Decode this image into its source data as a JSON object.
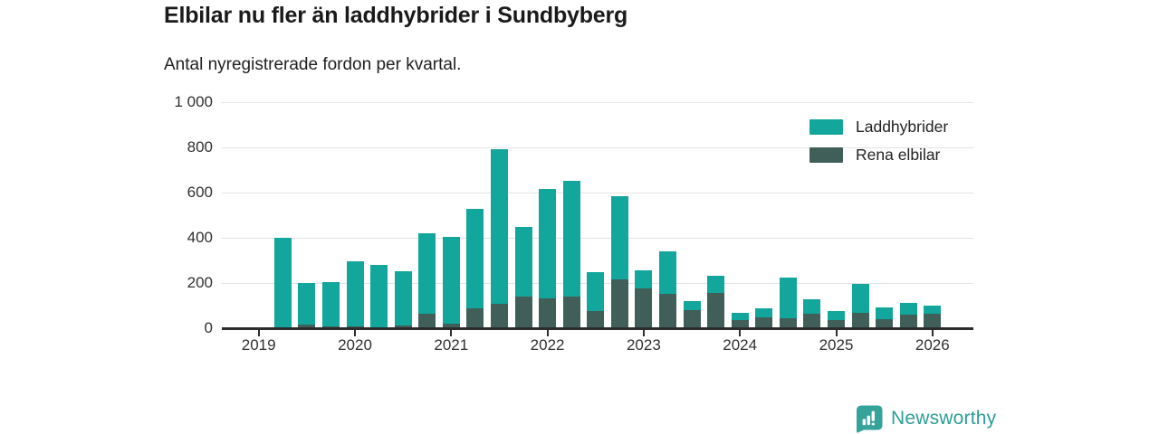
{
  "header": {
    "title": "Elbilar nu fler än laddhybrider i Sundbyberg",
    "subtitle": "Antal nyregistrerade fordon per kvartal."
  },
  "chart_data": {
    "type": "bar",
    "stacked": true,
    "title": "Elbilar nu fler än laddhybrider i Sundbyberg",
    "subtitle": "Antal nyregistrerade fordon per kvartal.",
    "x": [
      "2019 Q2",
      "2019 Q3",
      "2019 Q4",
      "2020 Q1",
      "2020 Q2",
      "2020 Q3",
      "2020 Q4",
      "2021 Q1",
      "2021 Q2",
      "2021 Q3",
      "2021 Q4",
      "2022 Q1",
      "2022 Q2",
      "2022 Q3",
      "2022 Q4",
      "2023 Q1",
      "2023 Q2",
      "2023 Q3",
      "2023 Q4",
      "2024 Q1",
      "2024 Q2",
      "2024 Q3",
      "2024 Q4",
      "2025 Q1",
      "2025 Q2",
      "2025 Q3",
      "2025 Q4",
      "2026 Q1"
    ],
    "series": [
      {
        "name": "Laddhybrider",
        "color": "#12a69c",
        "values": [
          397,
          182,
          195,
          287,
          275,
          240,
          355,
          383,
          440,
          682,
          306,
          484,
          510,
          171,
          369,
          79,
          189,
          42,
          74,
          32,
          40,
          183,
          61,
          39,
          128,
          51,
          53,
          35
        ]
      },
      {
        "name": "Rena elbilar",
        "color": "#405f59",
        "values": [
          3,
          18,
          8,
          10,
          5,
          12,
          65,
          20,
          90,
          110,
          142,
          133,
          142,
          77,
          215,
          176,
          152,
          80,
          158,
          36,
          49,
          43,
          66,
          37,
          69,
          42,
          60,
          66
        ]
      }
    ],
    "stack_order_bottom_to_top": [
      "Rena elbilar",
      "Laddhybrider"
    ],
    "ylim": [
      0,
      1000
    ],
    "yticks": [
      0,
      200,
      400,
      600,
      800,
      1000
    ],
    "ytick_labels": [
      "0",
      "200",
      "400",
      "600",
      "800",
      "1 000"
    ],
    "x_axis_tick_labels": [
      "2019",
      "2020",
      "2021",
      "2022",
      "2023",
      "2024",
      "2025",
      "2026"
    ],
    "grid": "horizontal",
    "legend_position": "top-right"
  },
  "legend": {
    "items": [
      {
        "label": "Laddhybrider",
        "color": "#12a69c"
      },
      {
        "label": "Rena elbilar",
        "color": "#405f59"
      }
    ]
  },
  "footer": {
    "brand": "Newsworthy",
    "brand_color": "#2b9e95",
    "logo_icon": "newsworthy-bar-chart-pin-icon",
    "logo_color": "#36a39a"
  }
}
